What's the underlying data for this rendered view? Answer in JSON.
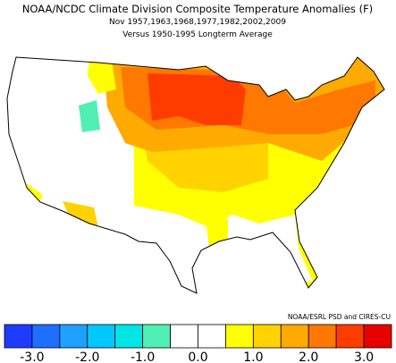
{
  "title": "NOAA/NCDC Climate Division Composite Temperature Anomalies (F)",
  "subtitle": "Nov  1957,1963,1968,1977,1982,2002,2009",
  "subtitle2": "Versus 1950-1995 Longterm Average",
  "credit": "NOAA/ESRL PSD and CIRES-CU",
  "colorbar": {
    "colors": [
      "#1e3cff",
      "#1e6eff",
      "#1ea0ff",
      "#00c8ff",
      "#00e6e6",
      "#50f0b4",
      "#ffffff",
      "#ffffff",
      "#ffff00",
      "#ffd200",
      "#ffaa00",
      "#ff7800",
      "#ff3c00",
      "#e60000"
    ],
    "labels": [
      "-3.0",
      "-2.0",
      "-1.0",
      "0.0",
      "1.0",
      "2.0",
      "3.0"
    ]
  }
}
